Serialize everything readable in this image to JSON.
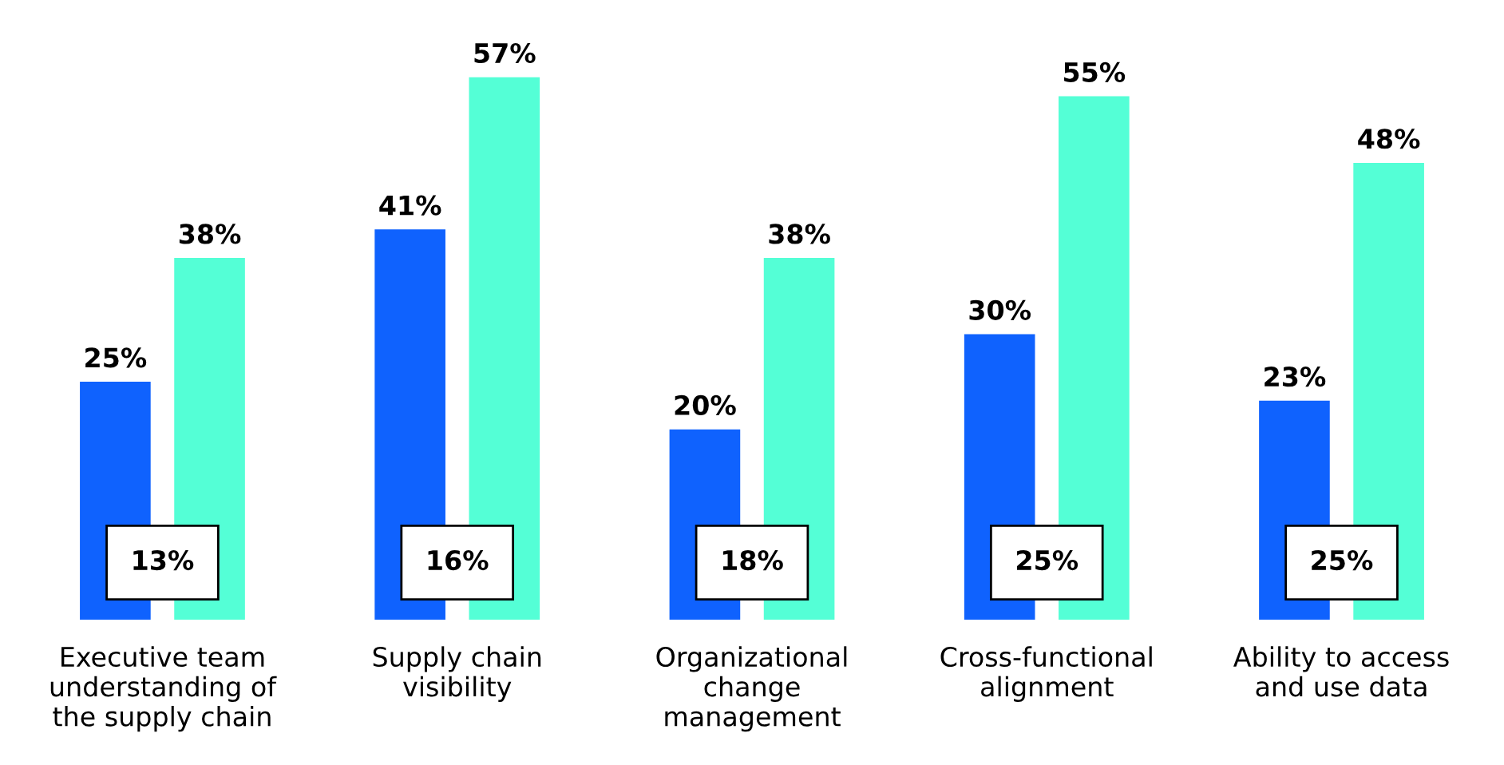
{
  "chart_data": {
    "type": "bar",
    "categories": [
      "Executive team\nunderstanding of\nthe supply chain",
      "Supply chain\nvisibility",
      "Organizational\nchange\nmanagement",
      "Cross-functional\nalignment",
      "Ability to access\nand use data"
    ],
    "series": [
      {
        "color": "#0f62fe",
        "values": [
          25,
          41,
          20,
          30,
          23
        ],
        "value_labels": [
          "25%",
          "41%",
          "20%",
          "30%",
          "23%"
        ]
      },
      {
        "color": "#54ffd6",
        "values": [
          38,
          57,
          38,
          55,
          48
        ],
        "value_labels": [
          "38%",
          "57%",
          "38%",
          "55%",
          "48%"
        ]
      }
    ],
    "annotations": [
      "13%",
      "16%",
      "18%",
      "25%",
      "25%"
    ],
    "legend": false,
    "grid": false
  }
}
